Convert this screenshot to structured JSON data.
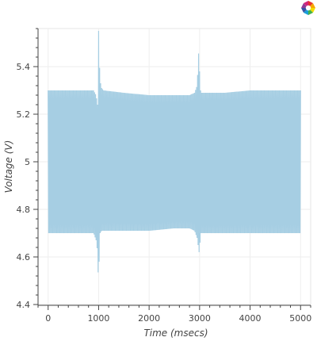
{
  "chart_data": {
    "type": "line",
    "title": "",
    "xlabel": "Time (msecs)",
    "ylabel": "Voltage (V)",
    "xlim": [
      -200,
      5200
    ],
    "ylim": [
      4.4,
      5.56
    ],
    "x_ticks": [
      0,
      1000,
      2000,
      3000,
      4000,
      5000
    ],
    "y_ticks": [
      4.4,
      4.6,
      4.8,
      5,
      5.2,
      5.4
    ],
    "x_tick_labels": [
      "0",
      "1000",
      "2000",
      "3000",
      "4000",
      "5000"
    ],
    "y_tick_labels": [
      "4.4",
      "4.6",
      "4.8",
      "5",
      "5.2",
      "5.4"
    ],
    "grid": true,
    "legend": "none",
    "series": [
      {
        "color": "#a6cee3",
        "description": "Oscillating voltage signal sampled every 10 ms from 0 to 5000 ms; envelope values below.",
        "envelope": {
          "x": [
            0,
            100,
            500,
            900,
            950,
            980,
            1000,
            1010,
            1030,
            1060,
            1100,
            1500,
            2000,
            2500,
            2800,
            2900,
            2950,
            2990,
            3000,
            3010,
            3030,
            3100,
            3500,
            4000,
            4500,
            5000
          ],
          "upper": [
            5.3,
            5.3,
            5.3,
            5.3,
            5.28,
            5.24,
            5.55,
            5.45,
            5.34,
            5.31,
            5.3,
            5.29,
            5.28,
            5.28,
            5.28,
            5.29,
            5.32,
            5.5,
            5.38,
            5.31,
            5.29,
            5.29,
            5.29,
            5.3,
            5.3,
            5.3
          ],
          "lower": [
            4.7,
            4.7,
            4.7,
            4.7,
            4.67,
            4.62,
            4.45,
            4.58,
            4.7,
            4.71,
            4.71,
            4.71,
            4.71,
            4.72,
            4.72,
            4.71,
            4.68,
            4.62,
            4.53,
            4.66,
            4.7,
            4.7,
            4.7,
            4.7,
            4.7,
            4.7
          ]
        }
      }
    ]
  },
  "toolbar": {
    "logo": "bokeh-logo-icon"
  }
}
